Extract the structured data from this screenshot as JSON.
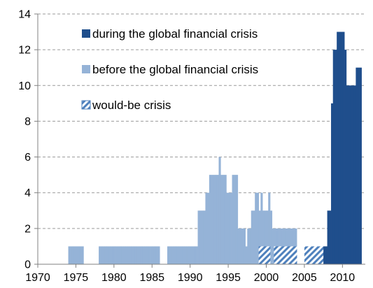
{
  "chart_data": {
    "type": "bar",
    "title": "",
    "xlabel": "",
    "ylabel": "",
    "xlim": [
      1970,
      2013
    ],
    "ylim": [
      0,
      14
    ],
    "x_ticks": [
      1970,
      1975,
      1980,
      1985,
      1990,
      1995,
      2000,
      2005,
      2010
    ],
    "y_ticks": [
      0,
      2,
      4,
      6,
      8,
      10,
      12,
      14
    ],
    "grid": "horizontal dashed",
    "legend_placement": "top-left inside plot",
    "colors": {
      "during": "#1f4e8c",
      "before": "#95b3d7",
      "would_be": "#4f81bd"
    },
    "series": [
      {
        "name": "during the global financial crisis",
        "style": "solid-dark",
        "points": [
          {
            "x": 2007.5,
            "y": 1
          },
          {
            "x": 2007.75,
            "y": 1
          },
          {
            "x": 2008.0,
            "y": 3
          },
          {
            "x": 2008.25,
            "y": 3
          },
          {
            "x": 2008.5,
            "y": 9
          },
          {
            "x": 2008.75,
            "y": 12
          },
          {
            "x": 2009.0,
            "y": 12
          },
          {
            "x": 2009.25,
            "y": 13
          },
          {
            "x": 2009.5,
            "y": 13
          },
          {
            "x": 2009.75,
            "y": 13
          },
          {
            "x": 2010.0,
            "y": 13
          },
          {
            "x": 2010.25,
            "y": 12
          },
          {
            "x": 2010.5,
            "y": 10
          },
          {
            "x": 2010.75,
            "y": 10
          },
          {
            "x": 2011.0,
            "y": 10
          },
          {
            "x": 2011.25,
            "y": 10
          },
          {
            "x": 2011.5,
            "y": 10
          },
          {
            "x": 2011.75,
            "y": 11
          },
          {
            "x": 2012.0,
            "y": 11
          },
          {
            "x": 2012.25,
            "y": 11
          }
        ]
      },
      {
        "name": "before the global financial crisis",
        "style": "solid-light",
        "points": [
          {
            "x": 1974.0,
            "y": 1
          },
          {
            "x": 1974.25,
            "y": 1
          },
          {
            "x": 1974.5,
            "y": 1
          },
          {
            "x": 1974.75,
            "y": 1
          },
          {
            "x": 1975.0,
            "y": 1
          },
          {
            "x": 1975.25,
            "y": 1
          },
          {
            "x": 1975.5,
            "y": 1
          },
          {
            "x": 1975.75,
            "y": 1
          },
          {
            "x": 1978.0,
            "y": 1
          },
          {
            "x": 1978.25,
            "y": 1
          },
          {
            "x": 1978.5,
            "y": 1
          },
          {
            "x": 1978.75,
            "y": 1
          },
          {
            "x": 1979.0,
            "y": 1
          },
          {
            "x": 1979.25,
            "y": 1
          },
          {
            "x": 1979.5,
            "y": 1
          },
          {
            "x": 1979.75,
            "y": 1
          },
          {
            "x": 1980.0,
            "y": 1
          },
          {
            "x": 1980.25,
            "y": 1
          },
          {
            "x": 1980.5,
            "y": 1
          },
          {
            "x": 1980.75,
            "y": 1
          },
          {
            "x": 1981.0,
            "y": 1
          },
          {
            "x": 1981.25,
            "y": 1
          },
          {
            "x": 1981.5,
            "y": 1
          },
          {
            "x": 1981.75,
            "y": 1
          },
          {
            "x": 1982.0,
            "y": 1
          },
          {
            "x": 1982.25,
            "y": 1
          },
          {
            "x": 1982.5,
            "y": 1
          },
          {
            "x": 1982.75,
            "y": 1
          },
          {
            "x": 1983.0,
            "y": 1
          },
          {
            "x": 1983.25,
            "y": 1
          },
          {
            "x": 1983.5,
            "y": 1
          },
          {
            "x": 1983.75,
            "y": 1
          },
          {
            "x": 1984.0,
            "y": 1
          },
          {
            "x": 1984.25,
            "y": 1
          },
          {
            "x": 1984.5,
            "y": 1
          },
          {
            "x": 1984.75,
            "y": 1
          },
          {
            "x": 1985.0,
            "y": 1
          },
          {
            "x": 1985.25,
            "y": 1
          },
          {
            "x": 1985.5,
            "y": 1
          },
          {
            "x": 1985.75,
            "y": 1
          },
          {
            "x": 1987.0,
            "y": 1
          },
          {
            "x": 1987.25,
            "y": 1
          },
          {
            "x": 1987.5,
            "y": 1
          },
          {
            "x": 1987.75,
            "y": 1
          },
          {
            "x": 1988.0,
            "y": 1
          },
          {
            "x": 1988.25,
            "y": 1
          },
          {
            "x": 1988.5,
            "y": 1
          },
          {
            "x": 1988.75,
            "y": 1
          },
          {
            "x": 1989.0,
            "y": 1
          },
          {
            "x": 1989.25,
            "y": 1
          },
          {
            "x": 1989.5,
            "y": 1
          },
          {
            "x": 1989.75,
            "y": 1
          },
          {
            "x": 1990.0,
            "y": 1
          },
          {
            "x": 1990.25,
            "y": 1
          },
          {
            "x": 1990.5,
            "y": 1
          },
          {
            "x": 1990.75,
            "y": 1
          },
          {
            "x": 1991.0,
            "y": 3
          },
          {
            "x": 1991.25,
            "y": 3
          },
          {
            "x": 1991.5,
            "y": 3
          },
          {
            "x": 1991.75,
            "y": 3
          },
          {
            "x": 1992.0,
            "y": 4
          },
          {
            "x": 1992.25,
            "y": 4
          },
          {
            "x": 1992.5,
            "y": 5
          },
          {
            "x": 1992.75,
            "y": 5
          },
          {
            "x": 1993.0,
            "y": 5
          },
          {
            "x": 1993.25,
            "y": 5
          },
          {
            "x": 1993.5,
            "y": 5
          },
          {
            "x": 1993.75,
            "y": 6
          },
          {
            "x": 1994.0,
            "y": 5
          },
          {
            "x": 1994.25,
            "y": 5
          },
          {
            "x": 1994.5,
            "y": 5
          },
          {
            "x": 1994.75,
            "y": 4
          },
          {
            "x": 1995.0,
            "y": 4
          },
          {
            "x": 1995.25,
            "y": 4
          },
          {
            "x": 1995.5,
            "y": 5
          },
          {
            "x": 1995.75,
            "y": 5
          },
          {
            "x": 1996.0,
            "y": 5
          },
          {
            "x": 1996.25,
            "y": 2
          },
          {
            "x": 1996.5,
            "y": 2
          },
          {
            "x": 1996.75,
            "y": 2
          },
          {
            "x": 1997.0,
            "y": 2
          },
          {
            "x": 1997.25,
            "y": 1
          },
          {
            "x": 1997.5,
            "y": 2
          },
          {
            "x": 1997.75,
            "y": 2
          },
          {
            "x": 1998.0,
            "y": 3
          },
          {
            "x": 1998.25,
            "y": 3
          },
          {
            "x": 1998.5,
            "y": 4
          },
          {
            "x": 1998.75,
            "y": 4
          },
          {
            "x": 1999.0,
            "y": 3
          },
          {
            "x": 1999.25,
            "y": 4
          },
          {
            "x": 1999.5,
            "y": 3
          },
          {
            "x": 1999.75,
            "y": 3
          },
          {
            "x": 2000.0,
            "y": 3
          },
          {
            "x": 2000.25,
            "y": 4
          },
          {
            "x": 2000.5,
            "y": 3
          },
          {
            "x": 2000.75,
            "y": 2
          },
          {
            "x": 2001.0,
            "y": 2
          },
          {
            "x": 2001.25,
            "y": 2
          },
          {
            "x": 2001.5,
            "y": 2
          },
          {
            "x": 2001.75,
            "y": 2
          },
          {
            "x": 2002.0,
            "y": 2
          },
          {
            "x": 2002.25,
            "y": 2
          },
          {
            "x": 2002.5,
            "y": 2
          },
          {
            "x": 2002.75,
            "y": 2
          },
          {
            "x": 2003.0,
            "y": 2
          },
          {
            "x": 2003.25,
            "y": 2
          },
          {
            "x": 2003.5,
            "y": 2
          },
          {
            "x": 2003.75,
            "y": 2
          }
        ]
      },
      {
        "name": "would-be crisis",
        "style": "hatched",
        "points": [
          {
            "x": 1999.0,
            "y": 1
          },
          {
            "x": 1999.25,
            "y": 1
          },
          {
            "x": 1999.5,
            "y": 1
          },
          {
            "x": 1999.75,
            "y": 1
          },
          {
            "x": 2000.0,
            "y": 1
          },
          {
            "x": 2000.25,
            "y": 1
          },
          {
            "x": 2001.0,
            "y": 1
          },
          {
            "x": 2001.25,
            "y": 1
          },
          {
            "x": 2001.5,
            "y": 1
          },
          {
            "x": 2001.75,
            "y": 1
          },
          {
            "x": 2002.0,
            "y": 1
          },
          {
            "x": 2002.25,
            "y": 1
          },
          {
            "x": 2002.5,
            "y": 1
          },
          {
            "x": 2002.75,
            "y": 1
          },
          {
            "x": 2003.0,
            "y": 1
          },
          {
            "x": 2003.25,
            "y": 1
          },
          {
            "x": 2003.5,
            "y": 1
          },
          {
            "x": 2003.75,
            "y": 1
          },
          {
            "x": 2005.0,
            "y": 1
          },
          {
            "x": 2005.25,
            "y": 1
          },
          {
            "x": 2005.5,
            "y": 1
          },
          {
            "x": 2005.75,
            "y": 1
          },
          {
            "x": 2006.0,
            "y": 1
          },
          {
            "x": 2006.25,
            "y": 1
          },
          {
            "x": 2006.5,
            "y": 1
          },
          {
            "x": 2006.75,
            "y": 1
          },
          {
            "x": 2007.0,
            "y": 1
          },
          {
            "x": 2007.25,
            "y": 1
          }
        ]
      }
    ]
  }
}
